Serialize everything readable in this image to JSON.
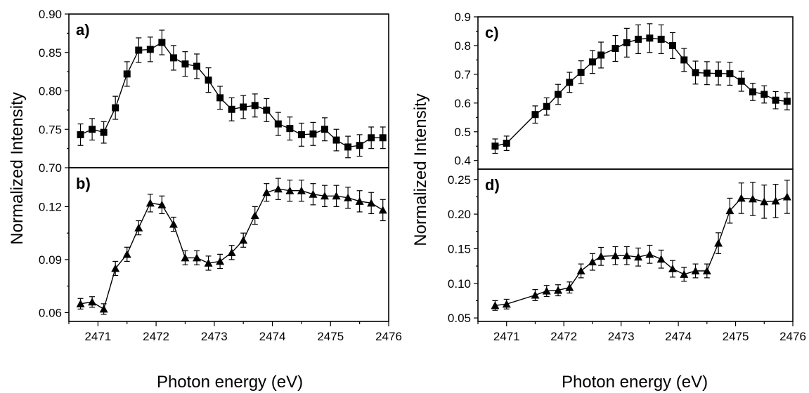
{
  "chart_data": [
    {
      "panel": "a)",
      "type": "line",
      "marker": "square",
      "ylim": [
        0.7,
        0.9
      ],
      "yticks": [
        "0.90",
        "0.85",
        "0.80",
        "0.75",
        "0.70"
      ],
      "xlim": [
        2470.5,
        2476.0
      ],
      "x": [
        2470.7,
        2470.9,
        2471.1,
        2471.3,
        2471.5,
        2471.7,
        2471.9,
        2472.1,
        2472.3,
        2472.5,
        2472.7,
        2472.9,
        2473.1,
        2473.3,
        2473.5,
        2473.7,
        2473.9,
        2474.1,
        2474.3,
        2474.5,
        2474.7,
        2474.9,
        2475.1,
        2475.3,
        2475.5,
        2475.7,
        2475.9
      ],
      "y": [
        0.743,
        0.75,
        0.746,
        0.778,
        0.822,
        0.853,
        0.854,
        0.863,
        0.843,
        0.835,
        0.832,
        0.814,
        0.791,
        0.776,
        0.779,
        0.781,
        0.775,
        0.757,
        0.751,
        0.743,
        0.744,
        0.75,
        0.736,
        0.727,
        0.729,
        0.739,
        0.739
      ],
      "err": [
        0.014,
        0.014,
        0.014,
        0.015,
        0.016,
        0.016,
        0.016,
        0.016,
        0.016,
        0.016,
        0.016,
        0.016,
        0.015,
        0.015,
        0.015,
        0.015,
        0.015,
        0.015,
        0.015,
        0.015,
        0.015,
        0.015,
        0.014,
        0.014,
        0.014,
        0.014,
        0.014
      ]
    },
    {
      "panel": "b)",
      "type": "line",
      "marker": "triangle",
      "ylim": [
        0.055,
        0.142
      ],
      "yticks": [
        "0.12",
        "0.09",
        "0.06"
      ],
      "yticks_values": [
        0.12,
        0.09,
        0.06
      ],
      "xlim": [
        2470.5,
        2476.0
      ],
      "xticks": [
        "2471",
        "2472",
        "2473",
        "2474",
        "2475",
        "2476"
      ],
      "x": [
        2470.7,
        2470.9,
        2471.1,
        2471.3,
        2471.5,
        2471.7,
        2471.9,
        2472.1,
        2472.3,
        2472.5,
        2472.7,
        2472.9,
        2473.1,
        2473.3,
        2473.5,
        2473.7,
        2473.9,
        2474.1,
        2474.3,
        2474.5,
        2474.7,
        2474.9,
        2475.1,
        2475.3,
        2475.5,
        2475.7,
        2475.9
      ],
      "y": [
        0.065,
        0.066,
        0.062,
        0.085,
        0.093,
        0.108,
        0.122,
        0.121,
        0.11,
        0.091,
        0.091,
        0.088,
        0.089,
        0.094,
        0.101,
        0.115,
        0.128,
        0.13,
        0.129,
        0.129,
        0.127,
        0.126,
        0.126,
        0.125,
        0.123,
        0.122,
        0.118
      ],
      "err": [
        0.003,
        0.003,
        0.003,
        0.004,
        0.004,
        0.004,
        0.005,
        0.005,
        0.004,
        0.004,
        0.004,
        0.004,
        0.004,
        0.004,
        0.004,
        0.005,
        0.005,
        0.006,
        0.006,
        0.006,
        0.006,
        0.006,
        0.006,
        0.006,
        0.006,
        0.006,
        0.006
      ]
    },
    {
      "panel": "c)",
      "type": "line",
      "marker": "square",
      "ylim": [
        0.37,
        0.9
      ],
      "yticks": [
        "0.9",
        "0.8",
        "0.7",
        "0.6",
        "0.5",
        "0.4"
      ],
      "yticks_values": [
        0.9,
        0.8,
        0.7,
        0.6,
        0.5,
        0.4
      ],
      "xlim": [
        2470.5,
        2476.0
      ],
      "x": [
        2470.8,
        2471.0,
        2471.5,
        2471.7,
        2471.9,
        2472.1,
        2472.3,
        2472.5,
        2472.65,
        2472.9,
        2473.1,
        2473.3,
        2473.5,
        2473.7,
        2473.9,
        2474.1,
        2474.3,
        2474.5,
        2474.7,
        2474.9,
        2475.1,
        2475.3,
        2475.5,
        2475.7,
        2475.9
      ],
      "y": [
        0.45,
        0.46,
        0.56,
        0.588,
        0.63,
        0.672,
        0.707,
        0.743,
        0.767,
        0.79,
        0.81,
        0.822,
        0.826,
        0.822,
        0.8,
        0.75,
        0.706,
        0.704,
        0.703,
        0.702,
        0.676,
        0.639,
        0.63,
        0.61,
        0.606
      ],
      "err": [
        0.025,
        0.025,
        0.03,
        0.03,
        0.035,
        0.035,
        0.04,
        0.04,
        0.045,
        0.045,
        0.05,
        0.05,
        0.05,
        0.05,
        0.045,
        0.04,
        0.04,
        0.04,
        0.04,
        0.04,
        0.035,
        0.03,
        0.03,
        0.03,
        0.03
      ]
    },
    {
      "panel": "d)",
      "type": "line",
      "marker": "triangle",
      "ylim": [
        0.045,
        0.265
      ],
      "yticks": [
        "0.25",
        "0.20",
        "0.15",
        "0.10",
        "0.05"
      ],
      "yticks_values": [
        0.25,
        0.2,
        0.15,
        0.1,
        0.05
      ],
      "xlim": [
        2470.5,
        2476.0
      ],
      "xticks": [
        "2471",
        "2472",
        "2473",
        "2474",
        "2475",
        "2476"
      ],
      "x": [
        2470.8,
        2471.0,
        2471.5,
        2471.7,
        2471.9,
        2472.1,
        2472.3,
        2472.5,
        2472.65,
        2472.9,
        2473.1,
        2473.3,
        2473.5,
        2473.7,
        2473.9,
        2474.1,
        2474.3,
        2474.5,
        2474.7,
        2474.9,
        2475.1,
        2475.3,
        2475.5,
        2475.7,
        2475.9
      ],
      "y": [
        0.068,
        0.07,
        0.083,
        0.089,
        0.09,
        0.094,
        0.118,
        0.131,
        0.139,
        0.14,
        0.14,
        0.138,
        0.142,
        0.135,
        0.121,
        0.113,
        0.118,
        0.118,
        0.158,
        0.205,
        0.223,
        0.222,
        0.218,
        0.219,
        0.225
      ],
      "err": [
        0.007,
        0.007,
        0.008,
        0.008,
        0.008,
        0.008,
        0.01,
        0.012,
        0.013,
        0.013,
        0.013,
        0.013,
        0.013,
        0.013,
        0.012,
        0.01,
        0.01,
        0.01,
        0.015,
        0.018,
        0.022,
        0.024,
        0.024,
        0.024,
        0.024
      ]
    }
  ],
  "labels": {
    "ylabel_left": "Normalized Intensity",
    "ylabel_right": "Normalized Intensity",
    "xlabel_left": "Photon energy (eV)",
    "xlabel_right": "Photon energy (eV)"
  }
}
